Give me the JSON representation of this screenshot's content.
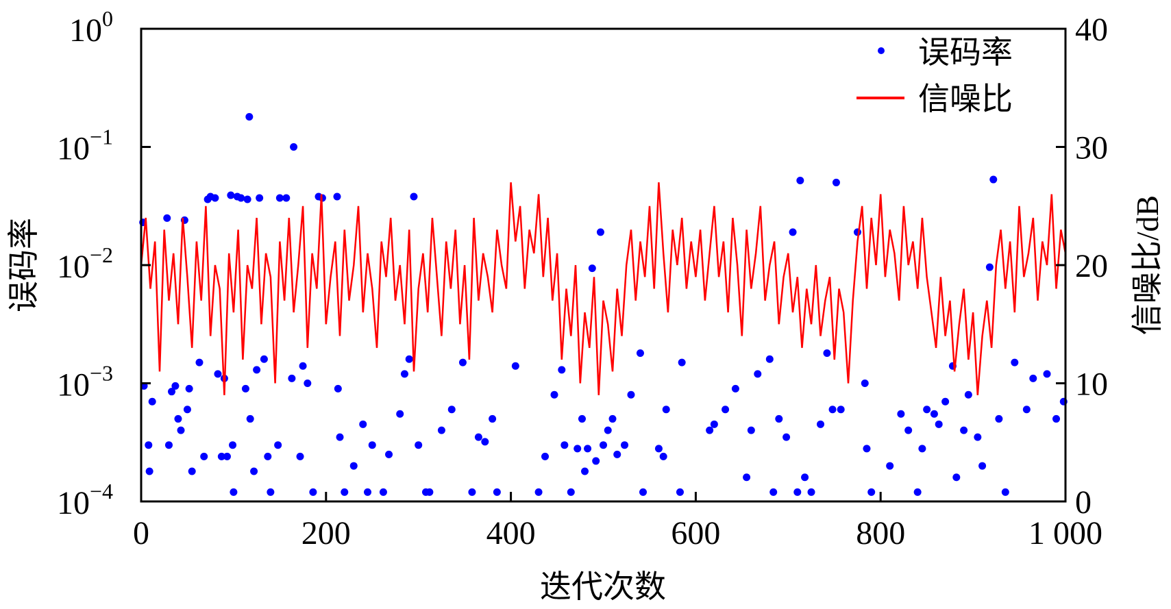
{
  "chart_data": {
    "type": "scatter+line",
    "xlabel": "迭代次数",
    "ylabel_left": "误码率",
    "ylabel_right": "信噪比/dB",
    "xlim": [
      0,
      1000
    ],
    "ylim_left_log10": [
      -4,
      0
    ],
    "ylim_right": [
      0,
      40
    ],
    "x_ticks": [
      "0",
      "200",
      "400",
      "600",
      "800",
      "1 000"
    ],
    "x_tick_values": [
      0,
      200,
      400,
      600,
      800,
      1000
    ],
    "y_left_ticks": [
      {
        "base": "10",
        "exp": "0",
        "v": 0
      },
      {
        "base": "10",
        "exp": "−1",
        "v": -1
      },
      {
        "base": "10",
        "exp": "−2",
        "v": -2
      },
      {
        "base": "10",
        "exp": "−3",
        "v": -3
      },
      {
        "base": "10",
        "exp": "−4",
        "v": -4
      }
    ],
    "y_right_ticks": [
      "0",
      "10",
      "20",
      "30",
      "40"
    ],
    "legend": {
      "position": "top-right",
      "entries": [
        "误码率",
        "信噪比"
      ]
    },
    "colors": {
      "ber": "#0000ff",
      "snr": "#ff0000"
    },
    "series": [
      {
        "name": "信噪比",
        "axis": "right",
        "x_start": 0,
        "x_step": 5,
        "values": [
          20,
          24,
          18,
          22,
          11,
          23,
          17,
          21,
          15,
          24,
          19,
          13,
          22,
          17,
          25,
          14,
          20,
          18,
          9,
          21,
          16,
          23,
          12,
          20,
          18,
          24,
          15,
          21,
          19,
          10,
          22,
          17,
          24,
          16,
          20,
          25,
          13,
          21,
          18,
          26,
          15,
          19,
          22,
          14,
          23,
          17,
          20,
          25,
          16,
          21,
          18,
          13,
          22,
          19,
          24,
          17,
          20,
          15,
          23,
          11,
          18,
          21,
          16,
          24,
          19,
          14,
          22,
          18,
          23,
          15,
          20,
          12,
          24,
          17,
          21,
          19,
          16,
          23,
          20,
          18,
          27,
          22,
          25,
          18,
          23,
          21,
          26,
          19,
          24,
          17,
          21,
          12,
          18,
          14,
          20,
          10,
          16,
          13,
          19,
          9,
          17,
          15,
          11,
          18,
          14,
          20,
          23,
          17,
          22,
          19,
          25,
          18,
          27,
          21,
          16,
          23,
          20,
          24,
          18,
          22,
          19,
          23,
          17,
          21,
          25,
          19,
          22,
          16,
          24,
          20,
          14,
          23,
          18,
          21,
          25,
          17,
          20,
          22,
          15,
          19,
          21,
          16,
          19,
          13,
          18,
          15,
          20,
          14,
          17,
          19,
          12,
          18,
          16,
          10,
          17,
          22,
          25,
          18,
          24,
          20,
          26,
          19,
          23,
          21,
          17,
          25,
          20,
          22,
          18,
          24,
          19,
          16,
          13,
          19,
          14,
          17,
          11,
          15,
          18,
          12,
          16,
          9,
          14,
          17,
          13,
          20,
          23,
          18,
          22,
          16,
          25,
          19,
          21,
          24,
          17,
          22,
          20,
          26,
          18,
          23,
          21
        ]
      },
      {
        "name": "误码率",
        "axis": "left",
        "points": [
          [
            2,
            0.023
          ],
          [
            3,
            0.00095
          ],
          [
            8,
            0.0003
          ],
          [
            9,
            0.00018
          ],
          [
            12,
            0.0007
          ],
          [
            28,
            0.025
          ],
          [
            30,
            0.0003
          ],
          [
            33,
            0.00085
          ],
          [
            37,
            0.00095
          ],
          [
            40,
            0.0005
          ],
          [
            43,
            0.0004
          ],
          [
            47,
            0.024
          ],
          [
            50,
            0.0006
          ],
          [
            52,
            0.0009
          ],
          [
            55,
            0.00018
          ],
          [
            63,
            0.0015
          ],
          [
            68,
            0.00024
          ],
          [
            72,
            0.036
          ],
          [
            75,
            0.038
          ],
          [
            80,
            0.037
          ],
          [
            83,
            0.0012
          ],
          [
            87,
            0.00024
          ],
          [
            90,
            0.0011
          ],
          [
            93,
            0.00024
          ],
          [
            97,
            0.039
          ],
          [
            99,
            0.0003
          ],
          [
            100,
            0.00012
          ],
          [
            104,
            0.038
          ],
          [
            108,
            0.037
          ],
          [
            113,
            0.0009
          ],
          [
            115,
            0.036
          ],
          [
            117,
            0.18
          ],
          [
            118,
            0.0005
          ],
          [
            122,
            0.00018
          ],
          [
            125,
            0.0013
          ],
          [
            128,
            0.037
          ],
          [
            133,
            0.0016
          ],
          [
            137,
            0.00024
          ],
          [
            140,
            0.00012
          ],
          [
            148,
            0.0003
          ],
          [
            150,
            0.037
          ],
          [
            157,
            0.037
          ],
          [
            163,
            0.0011
          ],
          [
            165,
            0.1
          ],
          [
            172,
            0.00024
          ],
          [
            175,
            0.0014
          ],
          [
            180,
            0.001
          ],
          [
            186,
            0.00012
          ],
          [
            192,
            0.038
          ],
          [
            196,
            0.037
          ],
          [
            212,
            0.038
          ],
          [
            213,
            0.0009
          ],
          [
            215,
            0.00035
          ],
          [
            220,
            0.00012
          ],
          [
            230,
            0.0002
          ],
          [
            240,
            0.00045
          ],
          [
            245,
            0.00012
          ],
          [
            250,
            0.0003
          ],
          [
            262,
            0.00012
          ],
          [
            268,
            0.00025
          ],
          [
            280,
            0.00055
          ],
          [
            285,
            0.0012
          ],
          [
            290,
            0.0016
          ],
          [
            295,
            0.038
          ],
          [
            300,
            0.0003
          ],
          [
            308,
            0.00012
          ],
          [
            312,
            0.00012
          ],
          [
            325,
            0.0004
          ],
          [
            336,
            0.0006
          ],
          [
            348,
            0.0015
          ],
          [
            358,
            0.00012
          ],
          [
            365,
            0.00035
          ],
          [
            372,
            0.00032
          ],
          [
            380,
            0.0005
          ],
          [
            385,
            0.00012
          ],
          [
            405,
            0.0014
          ],
          [
            430,
            0.00012
          ],
          [
            437,
            0.00024
          ],
          [
            447,
            0.0008
          ],
          [
            455,
            0.0013
          ],
          [
            458,
            0.0003
          ],
          [
            465,
            0.00012
          ],
          [
            472,
            0.00028
          ],
          [
            477,
            0.0005
          ],
          [
            480,
            0.00018
          ],
          [
            483,
            0.00028
          ],
          [
            488,
            0.0094
          ],
          [
            492,
            0.00022
          ],
          [
            497,
            0.019
          ],
          [
            500,
            0.0003
          ],
          [
            505,
            0.0004
          ],
          [
            510,
            0.0005
          ],
          [
            515,
            0.00025
          ],
          [
            523,
            0.0003
          ],
          [
            530,
            0.0008
          ],
          [
            540,
            0.0018
          ],
          [
            543,
            0.00012
          ],
          [
            560,
            0.00028
          ],
          [
            565,
            0.00024
          ],
          [
            568,
            0.0006
          ],
          [
            583,
            0.00012
          ],
          [
            585,
            0.0015
          ],
          [
            615,
            0.0004
          ],
          [
            620,
            0.00045
          ],
          [
            632,
            0.0006
          ],
          [
            643,
            0.0009
          ],
          [
            655,
            0.00016
          ],
          [
            660,
            0.0004
          ],
          [
            667,
            0.0012
          ],
          [
            680,
            0.0016
          ],
          [
            684,
            0.00012
          ],
          [
            690,
            0.0005
          ],
          [
            698,
            0.00035
          ],
          [
            705,
            0.019
          ],
          [
            710,
            0.00012
          ],
          [
            713,
            0.052
          ],
          [
            718,
            0.00016
          ],
          [
            725,
            0.00012
          ],
          [
            735,
            0.00045
          ],
          [
            742,
            0.0018
          ],
          [
            748,
            0.0006
          ],
          [
            752,
            0.05
          ],
          [
            757,
            0.0006
          ],
          [
            775,
            0.019
          ],
          [
            783,
            0.001
          ],
          [
            785,
            0.00028
          ],
          [
            790,
            0.00012
          ],
          [
            810,
            0.0002
          ],
          [
            822,
            0.00055
          ],
          [
            830,
            0.0004
          ],
          [
            840,
            0.00012
          ],
          [
            845,
            0.00028
          ],
          [
            850,
            0.0006
          ],
          [
            858,
            0.00055
          ],
          [
            863,
            0.00045
          ],
          [
            870,
            0.0007
          ],
          [
            878,
            0.0014
          ],
          [
            882,
            0.00016
          ],
          [
            890,
            0.0004
          ],
          [
            895,
            0.0008
          ],
          [
            905,
            0.00035
          ],
          [
            910,
            0.0002
          ],
          [
            918,
            0.0096
          ],
          [
            922,
            0.053
          ],
          [
            928,
            0.0005
          ],
          [
            935,
            0.00012
          ],
          [
            945,
            0.0015
          ],
          [
            958,
            0.0006
          ],
          [
            965,
            0.0011
          ],
          [
            980,
            0.0012
          ],
          [
            990,
            0.0005
          ],
          [
            998,
            0.0007
          ]
        ]
      }
    ]
  }
}
